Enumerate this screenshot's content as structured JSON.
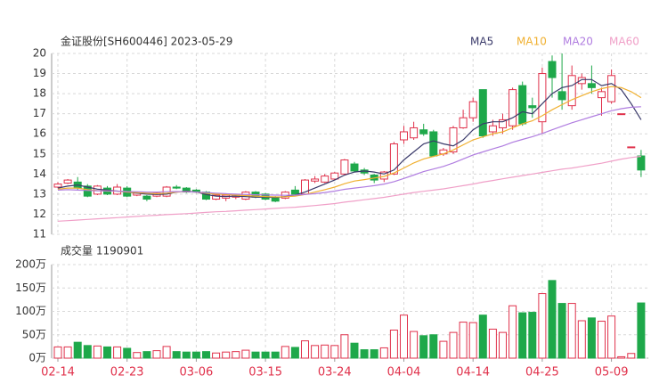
{
  "chart_data": [
    {
      "type": "candlestick",
      "title": "金证股份[SH600446] 2023-05-29",
      "up_color": "#e0314b",
      "down_color": "#1ea84a",
      "ylim": [
        11,
        20
      ],
      "yticks": [
        11,
        12,
        13,
        14,
        15,
        16,
        17,
        18,
        19,
        20
      ],
      "grid": true,
      "open": [
        13.35,
        13.55,
        13.6,
        13.4,
        13.0,
        13.3,
        13.0,
        13.3,
        12.95,
        12.9,
        12.9,
        12.9,
        13.35,
        13.3,
        13.2,
        13.1,
        12.75,
        12.8,
        12.85,
        12.75,
        13.1,
        13.0,
        12.8,
        12.8,
        13.2,
        13.0,
        13.65,
        13.6,
        13.75,
        14.0,
        14.5,
        14.2,
        13.95,
        13.75,
        14.0,
        15.7,
        15.8,
        16.2,
        16.1,
        15.0,
        15.1,
        16.3,
        16.8,
        18.2,
        16.1,
        16.3,
        16.4,
        18.4,
        17.4,
        16.6,
        19.6,
        18.1,
        17.4,
        18.5,
        18.5,
        17.8,
        17.6,
        17.0,
        15.35,
        14.9
      ],
      "high": [
        13.6,
        13.75,
        13.85,
        13.5,
        13.45,
        13.4,
        13.5,
        13.4,
        13.1,
        12.95,
        13.1,
        13.4,
        13.45,
        13.35,
        13.25,
        13.15,
        13.0,
        13.0,
        13.0,
        13.15,
        13.15,
        13.05,
        12.9,
        13.15,
        13.4,
        13.75,
        13.9,
        14.0,
        14.1,
        14.75,
        14.6,
        14.3,
        14.0,
        14.15,
        15.6,
        16.4,
        16.6,
        16.5,
        16.2,
        15.3,
        16.4,
        17.2,
        17.8,
        18.2,
        16.7,
        17.0,
        18.3,
        18.6,
        17.8,
        19.3,
        19.9,
        20.0,
        19.4,
        19.0,
        19.4,
        18.3,
        19.2,
        17.0,
        15.35,
        15.2
      ],
      "low": [
        13.3,
        13.5,
        13.2,
        12.85,
        12.95,
        12.95,
        12.95,
        12.85,
        12.9,
        12.65,
        12.85,
        12.85,
        13.25,
        13.05,
        13.05,
        12.7,
        12.7,
        12.65,
        12.75,
        12.7,
        12.8,
        12.7,
        12.6,
        12.75,
        12.95,
        12.95,
        13.55,
        13.55,
        13.7,
        13.95,
        14.1,
        13.95,
        13.55,
        13.6,
        13.95,
        15.5,
        15.7,
        15.9,
        14.85,
        14.9,
        15.0,
        16.25,
        16.6,
        15.8,
        15.9,
        16.0,
        16.2,
        16.4,
        16.8,
        16.0,
        17.8,
        17.2,
        17.2,
        18.2,
        18.0,
        16.9,
        17.5,
        17.0,
        15.35,
        13.85
      ],
      "close": [
        13.5,
        13.7,
        13.3,
        12.9,
        13.4,
        13.0,
        13.35,
        12.9,
        13.05,
        12.75,
        13.05,
        13.35,
        13.3,
        13.1,
        13.1,
        12.75,
        12.95,
        12.95,
        12.95,
        13.1,
        12.85,
        12.75,
        12.65,
        13.1,
        13.0,
        13.7,
        13.75,
        13.9,
        14.05,
        14.7,
        14.15,
        14.05,
        13.7,
        14.1,
        15.5,
        16.1,
        16.3,
        16.0,
        14.9,
        15.2,
        16.3,
        16.8,
        17.6,
        15.9,
        16.4,
        16.7,
        18.2,
        16.5,
        17.3,
        19.0,
        18.8,
        17.7,
        18.9,
        18.8,
        18.3,
        18.1,
        18.9,
        17.0,
        15.35,
        14.2
      ],
      "series": [
        {
          "name": "MA5",
          "color": "#3a3a6a",
          "values": [
            13.3,
            13.4,
            13.45,
            13.35,
            13.25,
            13.2,
            13.15,
            13.1,
            13.05,
            13.0,
            12.98,
            13.0,
            13.1,
            13.15,
            13.1,
            12.98,
            12.9,
            12.88,
            12.9,
            12.88,
            12.85,
            12.85,
            12.83,
            12.88,
            12.95,
            13.1,
            13.3,
            13.5,
            13.7,
            13.95,
            14.1,
            14.15,
            14.1,
            14.0,
            14.2,
            14.7,
            15.1,
            15.5,
            15.65,
            15.5,
            15.4,
            15.7,
            16.2,
            16.5,
            16.6,
            16.6,
            16.8,
            17.1,
            17.0,
            17.5,
            18.0,
            18.3,
            18.4,
            18.7,
            18.7,
            18.4,
            18.5,
            18.2,
            17.5,
            16.7
          ]
        },
        {
          "name": "MA10",
          "color": "#f0b030",
          "values": [
            13.25,
            13.3,
            13.3,
            13.22,
            13.18,
            13.15,
            13.15,
            13.1,
            13.08,
            13.05,
            13.02,
            13.05,
            13.1,
            13.12,
            13.1,
            13.05,
            13.0,
            12.98,
            12.95,
            12.93,
            12.9,
            12.88,
            12.86,
            12.87,
            12.9,
            12.98,
            13.1,
            13.22,
            13.35,
            13.52,
            13.65,
            13.72,
            13.8,
            13.88,
            14.05,
            14.3,
            14.55,
            14.75,
            14.88,
            15.0,
            15.2,
            15.45,
            15.7,
            15.85,
            16.0,
            16.1,
            16.3,
            16.5,
            16.65,
            16.9,
            17.2,
            17.45,
            17.7,
            17.9,
            18.1,
            18.25,
            18.35,
            18.3,
            18.1,
            17.8
          ]
        },
        {
          "name": "MA20",
          "color": "#b07de0",
          "values": [
            13.2,
            13.22,
            13.2,
            13.18,
            13.17,
            13.16,
            13.15,
            13.13,
            13.12,
            13.1,
            13.1,
            13.12,
            13.13,
            13.12,
            13.1,
            13.08,
            13.05,
            13.02,
            13.0,
            12.98,
            12.97,
            12.96,
            12.95,
            12.94,
            12.95,
            12.98,
            13.02,
            13.08,
            13.15,
            13.24,
            13.3,
            13.36,
            13.42,
            13.5,
            13.62,
            13.78,
            13.95,
            14.12,
            14.25,
            14.38,
            14.55,
            14.75,
            14.95,
            15.1,
            15.25,
            15.4,
            15.58,
            15.72,
            15.86,
            16.02,
            16.2,
            16.38,
            16.55,
            16.7,
            16.85,
            17.0,
            17.15,
            17.25,
            17.32,
            17.35
          ]
        },
        {
          "name": "MA60",
          "color": "#f0a0c8",
          "values": [
            11.65,
            11.68,
            11.71,
            11.74,
            11.77,
            11.8,
            11.83,
            11.86,
            11.89,
            11.92,
            11.95,
            11.98,
            12.0,
            12.03,
            12.06,
            12.09,
            12.12,
            12.14,
            12.17,
            12.2,
            12.23,
            12.26,
            12.29,
            12.32,
            12.35,
            12.39,
            12.43,
            12.48,
            12.53,
            12.6,
            12.66,
            12.72,
            12.78,
            12.84,
            12.92,
            13.0,
            13.08,
            13.14,
            13.2,
            13.26,
            13.34,
            13.42,
            13.5,
            13.6,
            13.68,
            13.76,
            13.84,
            13.92,
            14.0,
            14.08,
            14.16,
            14.24,
            14.3,
            14.38,
            14.46,
            14.54,
            14.64,
            14.74,
            14.82,
            14.88
          ]
        }
      ]
    },
    {
      "type": "bar",
      "title": "成交量 1190901",
      "categories": [
        "02-14",
        null,
        null,
        null,
        null,
        null,
        null,
        "02-23",
        null,
        null,
        null,
        null,
        null,
        null,
        "03-06",
        null,
        null,
        null,
        null,
        null,
        null,
        "03-15",
        null,
        null,
        null,
        null,
        null,
        null,
        "03-24",
        null,
        null,
        null,
        null,
        null,
        null,
        "04-04",
        null,
        null,
        null,
        null,
        null,
        null,
        "04-14",
        null,
        null,
        null,
        null,
        null,
        null,
        "04-25",
        null,
        null,
        null,
        null,
        null,
        null,
        "05-09",
        null,
        null,
        null
      ],
      "values": [
        24,
        24,
        34,
        27,
        26,
        24,
        24,
        21,
        12,
        14,
        16,
        25,
        14,
        13,
        13,
        14,
        11,
        13,
        14,
        17,
        13,
        13,
        13,
        25,
        23,
        37,
        27,
        28,
        27,
        50,
        32,
        18,
        18,
        22,
        60,
        92,
        57,
        48,
        50,
        36,
        55,
        77,
        76,
        92,
        62,
        55,
        112,
        97,
        98,
        138,
        166,
        117,
        117,
        80,
        86,
        79,
        90,
        3,
        10,
        118
      ],
      "ylim": [
        0,
        200
      ],
      "yticks": [
        {
          "value": 0,
          "label": "0万"
        },
        {
          "value": 50,
          "label": "50万"
        },
        {
          "value": 100,
          "label": "100万"
        },
        {
          "value": 150,
          "label": "150万"
        },
        {
          "value": 200,
          "label": "200万"
        }
      ],
      "grid": true
    }
  ]
}
